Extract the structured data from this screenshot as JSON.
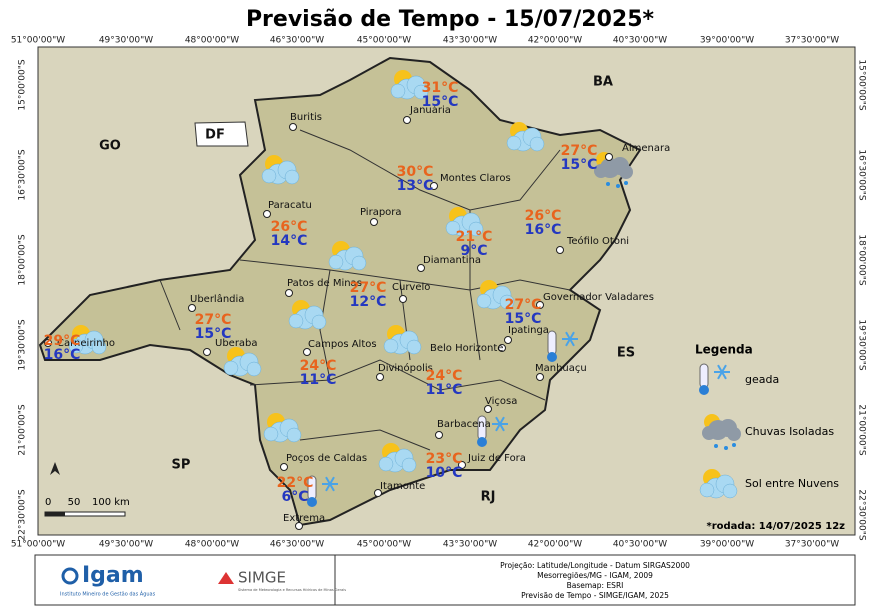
{
  "header": {
    "title": "Previsão de Tempo - 15/07/2025*"
  },
  "grid": {
    "longitudes": [
      "51°00'00\"W",
      "49°30'00\"W",
      "48°00'00\"W",
      "46°30'00\"W",
      "45°00'00\"W",
      "43°30'00\"W",
      "42°00'00\"W",
      "40°30'00\"W",
      "39°00'00\"W",
      "37°30'00\"W"
    ],
    "latitudes": [
      "15°00'00\"S",
      "16°30'00\"S",
      "18°00'00\"S",
      "19°30'00\"S",
      "21°00'00\"S",
      "22°30'00\"S"
    ]
  },
  "states": [
    "GO",
    "DF",
    "BA",
    "ES",
    "SP",
    "RJ"
  ],
  "cities": [
    "Buritis",
    "Januária",
    "Almenara",
    "Montes Claros",
    "Paracatu",
    "Pirapora",
    "Teófilo Otoni",
    "Diamantina",
    "Patos de Minas",
    "Curvelo",
    "Uberlândia",
    "Governador Valadares",
    "Ipatinga",
    "Carneirinho",
    "Campos Altos",
    "Belo Horizonte",
    "Uberaba",
    "Divinópolis",
    "Manhuaçu",
    "Viçosa",
    "Barbacena",
    "Juiz de Fora",
    "Poços de Caldas",
    "Itamonte",
    "Extrema"
  ],
  "forecasts": [
    {
      "max": "31°C",
      "min": "15°C"
    },
    {
      "max": "27°C",
      "min": "15°C"
    },
    {
      "max": "30°C",
      "min": "13°C"
    },
    {
      "max": "26°C",
      "min": "14°C"
    },
    {
      "max": "26°C",
      "min": "16°C"
    },
    {
      "max": "21°C",
      "min": "9°C"
    },
    {
      "max": "27°C",
      "min": "12°C"
    },
    {
      "max": "27°C",
      "min": "15°C"
    },
    {
      "max": "27°C",
      "min": "15°C"
    },
    {
      "max": "29°C",
      "min": "16°C"
    },
    {
      "max": "24°C",
      "min": "11°C"
    },
    {
      "max": "24°C",
      "min": "11°C"
    },
    {
      "max": "23°C",
      "min": "10°C"
    },
    {
      "max": "22°C",
      "min": "6°C"
    }
  ],
  "legend": {
    "title": "Legenda",
    "items": [
      "geada",
      "Chuvas Isoladas",
      "Sol entre Nuvens"
    ]
  },
  "scale": [
    "0",
    "50",
    "100 km"
  ],
  "footnote": "*rodada: 14/07/2025 12z",
  "footer": {
    "logo1": "Igam",
    "logo1_sub": "Instituto Mineiro de Gestão das Águas",
    "logo2": "SIMGE",
    "logo2_sub": "Sistema de Meteorologia e Recursos Hídricos de Minas Gerais",
    "credits": [
      "Projeção: Latitude/Longitude - Datum SIRGAS2000",
      "Mesorregiões/MG - IGAM, 2009",
      "Basemap: ESRI",
      "Previsão de Tempo - SIMGE/IGAM, 2025"
    ]
  }
}
